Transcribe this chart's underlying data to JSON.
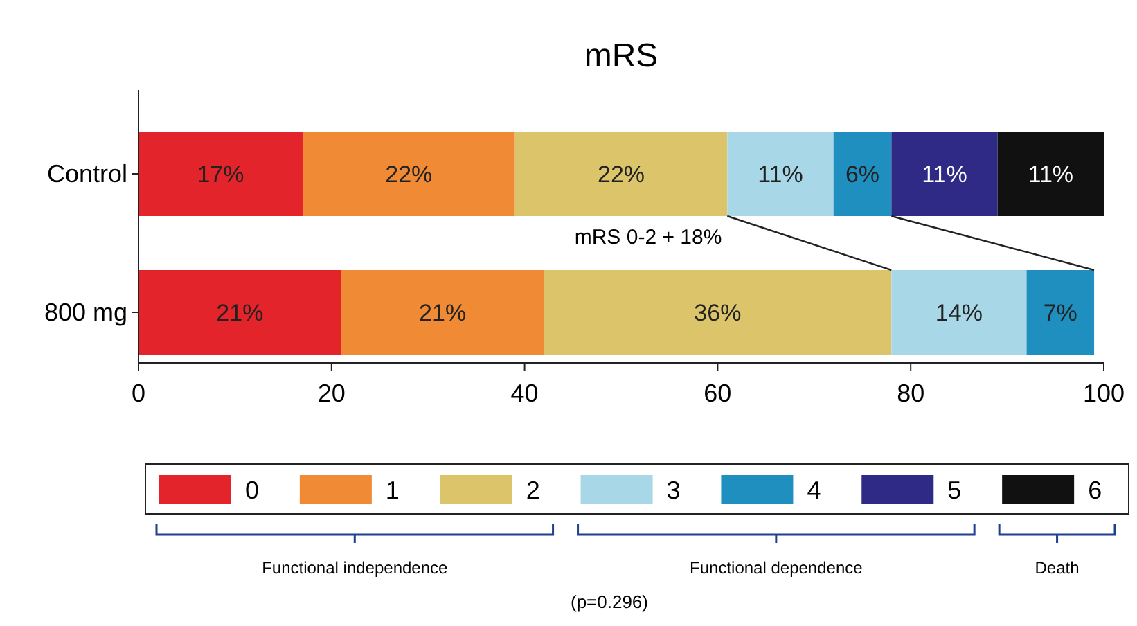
{
  "chart_data": {
    "type": "bar",
    "orientation": "horizontal",
    "stacked": true,
    "title": "mRS",
    "categories": [
      "Control",
      "800 mg"
    ],
    "series": [
      {
        "name": "0",
        "color": "#e3242b",
        "values": [
          17,
          21
        ],
        "value_labels": [
          "17%",
          "21%"
        ]
      },
      {
        "name": "1",
        "color": "#f08a35",
        "values": [
          22,
          21
        ],
        "value_labels": [
          "22%",
          "21%"
        ]
      },
      {
        "name": "2",
        "color": "#dcc46a",
        "values": [
          22,
          36
        ],
        "value_labels": [
          "22%",
          "36%"
        ]
      },
      {
        "name": "3",
        "color": "#a8d8e8",
        "values": [
          11,
          14
        ],
        "value_labels": [
          "11%",
          "14%"
        ]
      },
      {
        "name": "4",
        "color": "#1f8fc0",
        "values": [
          6,
          7
        ],
        "value_labels": [
          "6%",
          "7%"
        ]
      },
      {
        "name": "5",
        "color": "#2e2a86",
        "values": [
          11,
          null
        ],
        "value_labels": [
          "11%",
          null
        ]
      },
      {
        "name": "6",
        "color": "#111111",
        "values": [
          11,
          null
        ],
        "value_labels": [
          "11%",
          null
        ]
      }
    ],
    "xlim": [
      0,
      100
    ],
    "xticks": [
      0,
      20,
      40,
      60,
      80,
      100
    ],
    "legend": "bottom",
    "annotations": [
      {
        "text": "mRS 0-2 + 18%",
        "x": 61,
        "y": "Control"
      },
      "Functional independence",
      "Functional dependence",
      "Death",
      "(p=0.296)"
    ]
  }
}
